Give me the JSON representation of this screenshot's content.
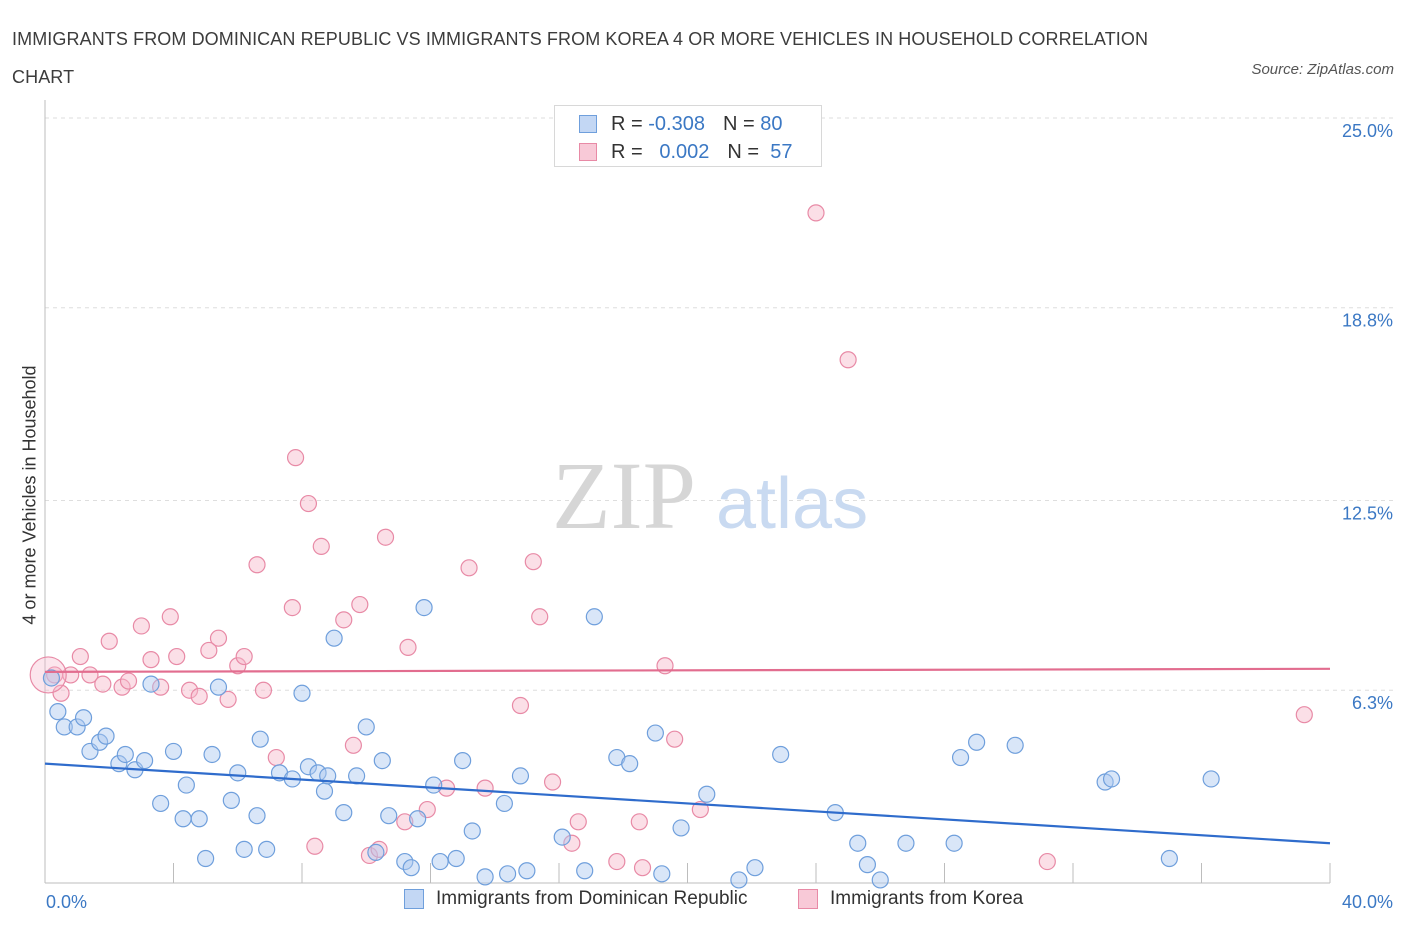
{
  "title": "IMMIGRANTS FROM DOMINICAN REPUBLIC VS IMMIGRANTS FROM KOREA 4 OR MORE VEHICLES IN HOUSEHOLD CORRELATION CHART",
  "source": "Source: ZipAtlas.com",
  "watermark": {
    "zip": "ZIP",
    "atlas": "atlas"
  },
  "legend": {
    "rows": [
      {
        "r_label": "R =",
        "r_value": "-0.308",
        "n_label": "N =",
        "n_value": "80"
      },
      {
        "r_label": "R =",
        "r_value": "0.002",
        "n_label": "N =",
        "n_value": "57"
      }
    ]
  },
  "bottom_legend": {
    "series1": "Immigrants from Dominican Republic",
    "series2": "Immigrants from Korea"
  },
  "colors": {
    "blue_fill": "#aac7ef",
    "blue_stroke": "#6f9fdc",
    "blue_line": "#2f6ccc",
    "pink_fill": "#f6b8ca",
    "pink_stroke": "#e88aa6",
    "pink_line": "#e26d8f",
    "axis_label": "#3b78c4"
  },
  "chart_data": {
    "type": "scatter",
    "title": "IMMIGRANTS FROM DOMINICAN REPUBLIC VS IMMIGRANTS FROM KOREA 4 OR MORE VEHICLES IN HOUSEHOLD CORRELATION CHART",
    "xlabel": "",
    "ylabel": "4 or more Vehicles in Household",
    "xlim": [
      0,
      40
    ],
    "ylim": [
      0,
      25
    ],
    "x_tick_labels": [
      "0.0%",
      "40.0%"
    ],
    "y_ticks": [
      6.3,
      12.5,
      18.8,
      25.0
    ],
    "y_tick_labels": [
      "6.3%",
      "12.5%",
      "18.8%",
      "25.0%"
    ],
    "legend_position": "top-center",
    "series": [
      {
        "name": "Immigrants from Dominican Republic",
        "R": -0.308,
        "N": 80,
        "trend": {
          "x": [
            0,
            40
          ],
          "y": [
            3.9,
            1.3
          ]
        },
        "points": [
          [
            0.2,
            6.7
          ],
          [
            0.4,
            5.6
          ],
          [
            0.6,
            5.1
          ],
          [
            1.0,
            5.1
          ],
          [
            1.2,
            5.4
          ],
          [
            1.4,
            4.3
          ],
          [
            1.7,
            4.6
          ],
          [
            1.9,
            4.8
          ],
          [
            2.3,
            3.9
          ],
          [
            2.5,
            4.2
          ],
          [
            2.8,
            3.7
          ],
          [
            3.1,
            4.0
          ],
          [
            3.3,
            6.5
          ],
          [
            3.6,
            2.6
          ],
          [
            4.0,
            4.3
          ],
          [
            4.3,
            2.1
          ],
          [
            4.4,
            3.2
          ],
          [
            4.8,
            2.1
          ],
          [
            5.0,
            0.8
          ],
          [
            5.2,
            4.2
          ],
          [
            5.4,
            6.4
          ],
          [
            5.8,
            2.7
          ],
          [
            6.0,
            3.6
          ],
          [
            6.2,
            1.1
          ],
          [
            6.6,
            2.2
          ],
          [
            6.7,
            4.7
          ],
          [
            6.9,
            1.1
          ],
          [
            7.3,
            3.6
          ],
          [
            7.7,
            3.4
          ],
          [
            8.0,
            6.2
          ],
          [
            8.2,
            3.8
          ],
          [
            8.5,
            3.6
          ],
          [
            8.7,
            3.0
          ],
          [
            8.8,
            3.5
          ],
          [
            9.0,
            8.0
          ],
          [
            9.3,
            2.3
          ],
          [
            9.7,
            3.5
          ],
          [
            10.0,
            5.1
          ],
          [
            10.3,
            1.0
          ],
          [
            10.5,
            4.0
          ],
          [
            10.7,
            2.2
          ],
          [
            11.2,
            0.7
          ],
          [
            11.4,
            0.5
          ],
          [
            11.6,
            2.1
          ],
          [
            11.8,
            9.0
          ],
          [
            12.1,
            3.2
          ],
          [
            12.3,
            0.7
          ],
          [
            12.8,
            0.8
          ],
          [
            13.0,
            4.0
          ],
          [
            13.3,
            1.7
          ],
          [
            13.7,
            0.2
          ],
          [
            14.3,
            2.6
          ],
          [
            14.4,
            0.3
          ],
          [
            14.8,
            3.5
          ],
          [
            15.0,
            0.4
          ],
          [
            16.1,
            1.5
          ],
          [
            16.8,
            0.4
          ],
          [
            17.1,
            8.7
          ],
          [
            17.8,
            4.1
          ],
          [
            18.2,
            3.9
          ],
          [
            19.0,
            4.9
          ],
          [
            19.2,
            0.3
          ],
          [
            19.8,
            1.8
          ],
          [
            20.6,
            2.9
          ],
          [
            21.6,
            0.1
          ],
          [
            22.1,
            0.5
          ],
          [
            22.9,
            4.2
          ],
          [
            24.6,
            2.3
          ],
          [
            25.3,
            1.3
          ],
          [
            25.6,
            0.6
          ],
          [
            26.0,
            0.1
          ],
          [
            26.8,
            1.3
          ],
          [
            28.3,
            1.3
          ],
          [
            28.5,
            4.1
          ],
          [
            29.0,
            4.6
          ],
          [
            30.2,
            4.5
          ],
          [
            33.0,
            3.3
          ],
          [
            33.2,
            3.4
          ],
          [
            35.0,
            0.8
          ],
          [
            36.3,
            3.4
          ]
        ]
      },
      {
        "name": "Immigrants from Korea",
        "R": 0.002,
        "N": 57,
        "trend": {
          "x": [
            0,
            40
          ],
          "y": [
            6.9,
            7.0
          ]
        },
        "points": [
          [
            0.3,
            6.8
          ],
          [
            0.5,
            6.2
          ],
          [
            0.8,
            6.8
          ],
          [
            1.1,
            7.4
          ],
          [
            1.4,
            6.8
          ],
          [
            1.8,
            6.5
          ],
          [
            2.0,
            7.9
          ],
          [
            2.4,
            6.4
          ],
          [
            2.6,
            6.6
          ],
          [
            3.0,
            8.4
          ],
          [
            3.3,
            7.3
          ],
          [
            3.6,
            6.4
          ],
          [
            3.9,
            8.7
          ],
          [
            4.1,
            7.4
          ],
          [
            4.5,
            6.3
          ],
          [
            4.8,
            6.1
          ],
          [
            5.1,
            7.6
          ],
          [
            5.4,
            8.0
          ],
          [
            5.7,
            6.0
          ],
          [
            6.0,
            7.1
          ],
          [
            6.2,
            7.4
          ],
          [
            6.6,
            10.4
          ],
          [
            6.8,
            6.3
          ],
          [
            7.2,
            4.1
          ],
          [
            7.7,
            9.0
          ],
          [
            7.8,
            13.9
          ],
          [
            8.2,
            12.4
          ],
          [
            8.4,
            1.2
          ],
          [
            8.6,
            11.0
          ],
          [
            9.3,
            8.6
          ],
          [
            9.6,
            4.5
          ],
          [
            9.8,
            9.1
          ],
          [
            10.1,
            0.9
          ],
          [
            10.4,
            1.1
          ],
          [
            10.6,
            11.3
          ],
          [
            11.2,
            2.0
          ],
          [
            11.3,
            7.7
          ],
          [
            11.9,
            2.4
          ],
          [
            12.5,
            3.1
          ],
          [
            13.2,
            10.3
          ],
          [
            13.7,
            3.1
          ],
          [
            14.8,
            5.8
          ],
          [
            15.2,
            10.5
          ],
          [
            15.4,
            8.7
          ],
          [
            15.8,
            3.3
          ],
          [
            16.4,
            1.3
          ],
          [
            16.6,
            2.0
          ],
          [
            17.8,
            0.7
          ],
          [
            18.5,
            2.0
          ],
          [
            18.6,
            0.5
          ],
          [
            19.3,
            7.1
          ],
          [
            19.6,
            4.7
          ],
          [
            20.4,
            2.4
          ],
          [
            24.0,
            21.9
          ],
          [
            25.0,
            17.1
          ],
          [
            31.2,
            0.7
          ],
          [
            39.2,
            5.5
          ]
        ]
      }
    ]
  }
}
